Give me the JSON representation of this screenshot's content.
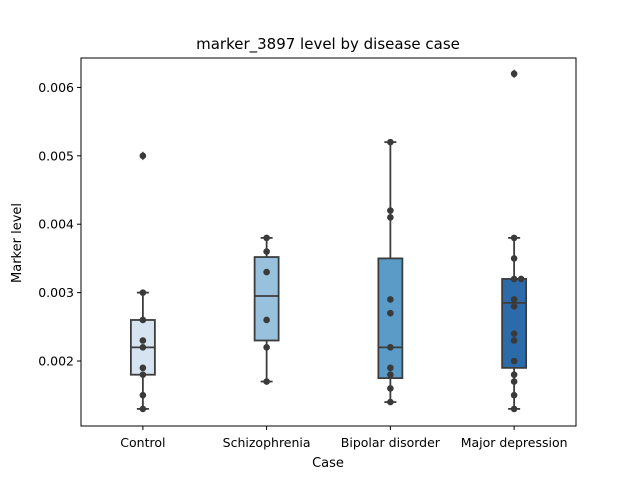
{
  "chart_data": {
    "type": "box",
    "title": "marker_3897 level by disease case",
    "xlabel": "Case",
    "ylabel": "Marker level",
    "categories": [
      "Control",
      "Schizophrenia",
      "Bipolar disorder",
      "Major depression"
    ],
    "ylim": [
      0.00105,
      0.00643
    ],
    "yticks": [
      0.002,
      0.003,
      0.004,
      0.005,
      0.006
    ],
    "ytick_labels": [
      "0.002",
      "0.003",
      "0.004",
      "0.005",
      "0.006"
    ],
    "grid": false,
    "legend": "none",
    "box_colors": [
      "#d6e3f0",
      "#97c1dc",
      "#5a9bc8",
      "#2c6ba9"
    ],
    "line_color": "#3d3d3d",
    "point_color": "#3a3a3a",
    "boxes": [
      {
        "category": "Control",
        "whisker_low": 0.0013,
        "q1": 0.0018,
        "median": 0.0022,
        "q3": 0.0026,
        "whisker_high": 0.003,
        "outliers": [
          0.005
        ]
      },
      {
        "category": "Schizophrenia",
        "whisker_low": 0.0017,
        "q1": 0.0023,
        "median": 0.00295,
        "q3": 0.00352,
        "whisker_high": 0.0038,
        "outliers": []
      },
      {
        "category": "Bipolar disorder",
        "whisker_low": 0.0014,
        "q1": 0.00175,
        "median": 0.0022,
        "q3": 0.0035,
        "whisker_high": 0.0052,
        "outliers": []
      },
      {
        "category": "Major depression",
        "whisker_low": 0.0013,
        "q1": 0.0019,
        "median": 0.00285,
        "q3": 0.0032,
        "whisker_high": 0.0038,
        "outliers": [
          0.0062
        ]
      }
    ],
    "points": [
      [
        0.0013,
        0.0015,
        0.0018,
        0.0019,
        0.0022,
        0.0023,
        0.0026,
        0.003,
        0.005
      ],
      [
        0.0017,
        0.0022,
        0.0026,
        0.0033,
        0.0036,
        0.0038
      ],
      [
        0.0014,
        0.0016,
        0.0018,
        0.0019,
        0.0022,
        0.0027,
        0.0029,
        0.0041,
        0.0042,
        0.0052
      ],
      [
        0.0013,
        0.0015,
        0.0017,
        0.0018,
        0.002,
        0.0023,
        0.0024,
        0.0028,
        0.0029,
        0.0032,
        0.0032,
        0.0035,
        0.0038,
        0.0062
      ]
    ]
  }
}
